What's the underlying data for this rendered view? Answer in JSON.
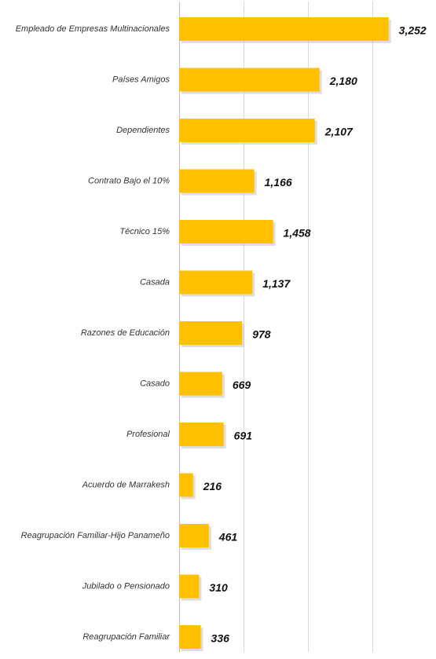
{
  "chart_data": {
    "type": "bar",
    "orientation": "horizontal",
    "categories": [
      "Empleado de Empresas Multinacionales",
      "Países Amigos",
      "Dependientes",
      "Contrato Bajo el 10%",
      "Técnico 15%",
      "Casada",
      "Razones de Educación",
      "Casado",
      "Profesional",
      "Acuerdo de Marrakesh",
      "Reagrupación Familiar-Hijo Panameño",
      "Jubilado o Pensionado",
      "Reagrupación Familiar"
    ],
    "values": [
      3252,
      2180,
      2107,
      1166,
      1458,
      1137,
      978,
      669,
      691,
      216,
      461,
      310,
      336
    ],
    "value_labels": [
      "3,252",
      "2,180",
      "2,107",
      "1,166",
      "1,458",
      "1,137",
      "978",
      "669",
      "691",
      "216",
      "461",
      "310",
      "336"
    ],
    "xlim": [
      0,
      4000
    ],
    "grid": true,
    "legend": "none",
    "bar_color": "#FFC000",
    "bar_shadow_color": "#c8c8c8"
  }
}
